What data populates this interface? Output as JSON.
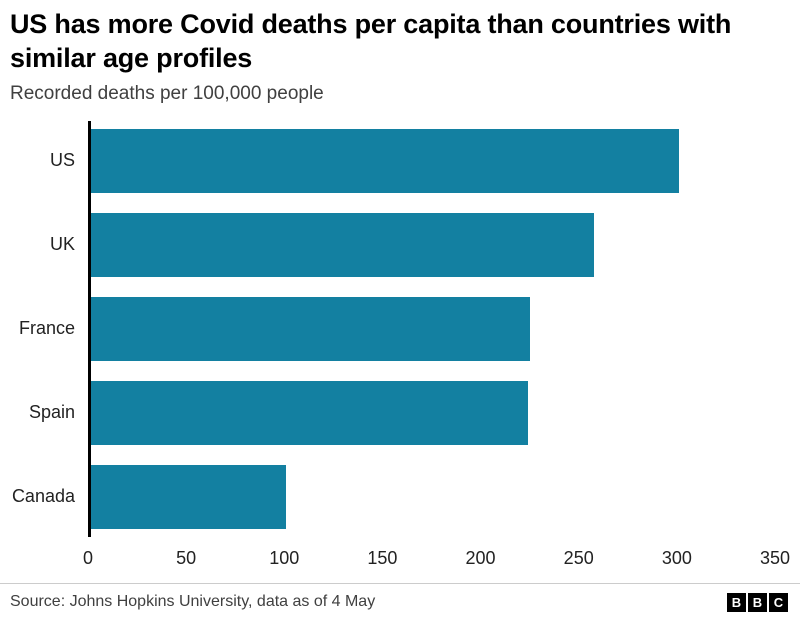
{
  "header": {
    "title": "US has more Covid deaths per capita than countries with similar age profiles",
    "subtitle": "Recorded deaths per 100,000 people"
  },
  "chart_data": {
    "type": "bar",
    "orientation": "horizontal",
    "title": "US has more Covid deaths per capita than countries with similar age profiles",
    "subtitle": "Recorded deaths per 100,000 people",
    "categories": [
      "US",
      "UK",
      "France",
      "Spain",
      "Canada"
    ],
    "values": [
      301,
      258,
      225,
      224,
      101
    ],
    "xlabel": "",
    "ylabel": "",
    "xlim": [
      0,
      350
    ],
    "xticks": [
      0,
      50,
      100,
      150,
      200,
      250,
      300,
      350
    ],
    "bar_color": "#1380A1",
    "grid": false,
    "legend": false
  },
  "footer": {
    "source": "Source: Johns Hopkins University, data as of 4 May",
    "logo_letters": [
      "B",
      "B",
      "C"
    ]
  }
}
